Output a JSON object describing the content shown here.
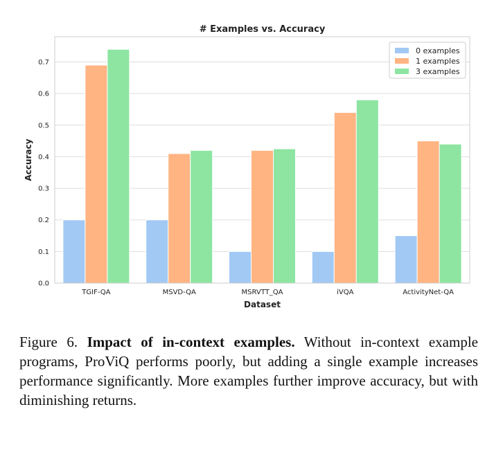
{
  "chart_data": {
    "type": "bar",
    "title": "# Examples vs. Accuracy",
    "xlabel": "Dataset",
    "ylabel": "Accuracy",
    "categories": [
      "TGIF-QA",
      "MSVD-QA",
      "MSRVTT_QA",
      "iVQA",
      "ActivityNet-QA"
    ],
    "series": [
      {
        "name": "0 examples",
        "color": "#a1c9f4",
        "values": [
          0.2,
          0.2,
          0.1,
          0.1,
          0.15
        ]
      },
      {
        "name": "1 examples",
        "color": "#ffb482",
        "values": [
          0.69,
          0.41,
          0.42,
          0.54,
          0.45
        ]
      },
      {
        "name": "3 examples",
        "color": "#8de5a1",
        "values": [
          0.74,
          0.42,
          0.425,
          0.58,
          0.44
        ]
      }
    ],
    "ylim": [
      0,
      0.78
    ],
    "yticks": [
      "0.0",
      "0.1",
      "0.2",
      "0.3",
      "0.4",
      "0.5",
      "0.6",
      "0.7"
    ],
    "grid": true,
    "legend_position": "top-right"
  },
  "caption": {
    "label": "Figure 6.",
    "title": "Impact of in-context examples.",
    "text": "Without in-context example programs, ProViQ performs poorly, but adding a single example increases performance significantly. More examples further improve accuracy, but with diminishing returns."
  }
}
